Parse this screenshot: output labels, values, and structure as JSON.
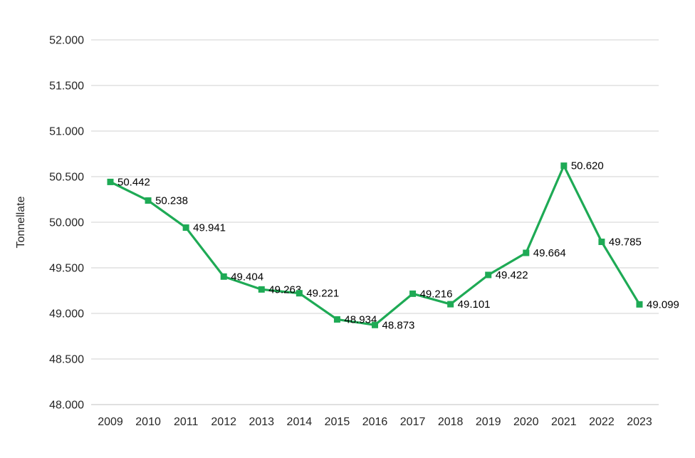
{
  "chart_data": {
    "type": "line",
    "title": "",
    "ylabel": "Tonnellate",
    "xlabel": "",
    "categories": [
      "2009",
      "2010",
      "2011",
      "2012",
      "2013",
      "2014",
      "2015",
      "2016",
      "2017",
      "2018",
      "2019",
      "2020",
      "2021",
      "2022",
      "2023"
    ],
    "values": [
      50442,
      50238,
      49941,
      49404,
      49263,
      49221,
      48934,
      48873,
      49216,
      49101,
      49422,
      49664,
      50620,
      49785,
      49099
    ],
    "point_labels": [
      "50.442",
      "50.238",
      "49.941",
      "49.404",
      "49.263",
      "49.221",
      "48.934",
      "48.873",
      "49.216",
      "49.101",
      "49.422",
      "49.664",
      "50.620",
      "49.785",
      "49.099"
    ],
    "ylim": [
      48000,
      52000
    ],
    "yticks": [
      {
        "value": 48000,
        "label": "48.000"
      },
      {
        "value": 48500,
        "label": "48.500"
      },
      {
        "value": 49000,
        "label": "49.000"
      },
      {
        "value": 49500,
        "label": "49.500"
      },
      {
        "value": 50000,
        "label": "50.000"
      },
      {
        "value": 50500,
        "label": "50.500"
      },
      {
        "value": 51000,
        "label": "51.000"
      },
      {
        "value": 51500,
        "label": "51.500"
      },
      {
        "value": 52000,
        "label": "52.000"
      }
    ],
    "grid": true,
    "legend": "none",
    "colors": {
      "line": "#1EAA55",
      "marker": "#1EAA55",
      "gridline": "#D9D9D9",
      "axis_line": "#D9D9D9",
      "tick_text": "#262626",
      "label_text": "#000000",
      "background": "#FFFFFF"
    },
    "marker_shape": "square"
  }
}
